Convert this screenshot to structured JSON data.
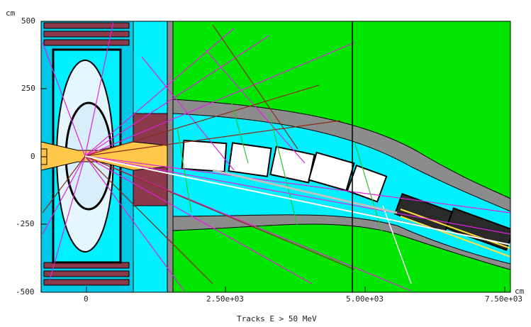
{
  "axes": {
    "y_unit": "cm",
    "x_unit": "cm",
    "y_ticks": [
      "500",
      "250",
      "0",
      "-250",
      "-500"
    ],
    "x_ticks": [
      "0",
      "2.50e+03",
      "5.00e+03",
      "7.50e+03"
    ]
  },
  "caption": "Tracks E > 50 MeV",
  "colors": {
    "background": "#ffffff",
    "frame": "#000000",
    "field": "#00e600",
    "vacuum": "#00f0ff",
    "steel": "#8c8c8c",
    "iron_block": "#8b3a4b",
    "magnet_yellow": "#ffc84a",
    "track_magenta": "#e020e0",
    "track_brown": "#8b2a1a",
    "track_green": "#30c030"
  }
}
